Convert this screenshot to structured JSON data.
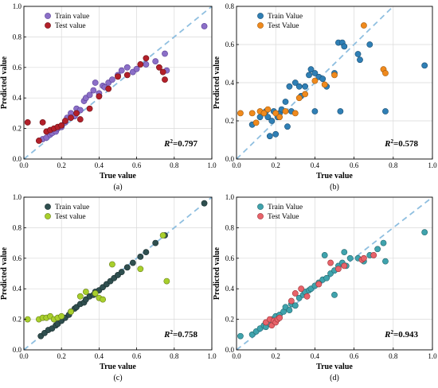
{
  "chart_data": [
    {
      "type": "scatter",
      "caption": "(a)",
      "xlabel": "True value",
      "ylabel": "Predicted value",
      "xlim": [
        0,
        1.0
      ],
      "ylim": [
        0,
        1.0
      ],
      "ticks": [
        "0.0",
        "0.2",
        "0.4",
        "0.6",
        "0.8",
        "1.0"
      ],
      "r2_prefix": "R",
      "r2_sup": "2",
      "r2_value": "=0.797",
      "legend_position": "top-left",
      "grid": true,
      "diagonal": true,
      "series": [
        {
          "name": "Train value",
          "color": "#8b6fc7",
          "edge": "#5a3f96",
          "points": [
            [
              0.1,
              0.13
            ],
            [
              0.12,
              0.14
            ],
            [
              0.14,
              0.16
            ],
            [
              0.15,
              0.17
            ],
            [
              0.17,
              0.18
            ],
            [
              0.18,
              0.2
            ],
            [
              0.2,
              0.21
            ],
            [
              0.22,
              0.24
            ],
            [
              0.23,
              0.27
            ],
            [
              0.25,
              0.3
            ],
            [
              0.27,
              0.28
            ],
            [
              0.28,
              0.33
            ],
            [
              0.3,
              0.32
            ],
            [
              0.32,
              0.38
            ],
            [
              0.33,
              0.4
            ],
            [
              0.35,
              0.42
            ],
            [
              0.37,
              0.45
            ],
            [
              0.38,
              0.5
            ],
            [
              0.4,
              0.43
            ],
            [
              0.42,
              0.48
            ],
            [
              0.43,
              0.47
            ],
            [
              0.45,
              0.5
            ],
            [
              0.47,
              0.52
            ],
            [
              0.5,
              0.55
            ],
            [
              0.52,
              0.58
            ],
            [
              0.55,
              0.6
            ],
            [
              0.58,
              0.57
            ],
            [
              0.6,
              0.59
            ],
            [
              0.65,
              0.62
            ],
            [
              0.7,
              0.64
            ],
            [
              0.75,
              0.69
            ],
            [
              0.76,
              0.58
            ],
            [
              0.96,
              0.87
            ]
          ]
        },
        {
          "name": "Test value",
          "color": "#b3202a",
          "edge": "#6e0f15",
          "points": [
            [
              0.02,
              0.24
            ],
            [
              0.08,
              0.12
            ],
            [
              0.1,
              0.24
            ],
            [
              0.12,
              0.18
            ],
            [
              0.14,
              0.19
            ],
            [
              0.16,
              0.2
            ],
            [
              0.18,
              0.21
            ],
            [
              0.2,
              0.22
            ],
            [
              0.22,
              0.25
            ],
            [
              0.25,
              0.27
            ],
            [
              0.28,
              0.3
            ],
            [
              0.3,
              0.26
            ],
            [
              0.35,
              0.33
            ],
            [
              0.4,
              0.41
            ],
            [
              0.45,
              0.46
            ],
            [
              0.5,
              0.54
            ],
            [
              0.55,
              0.55
            ],
            [
              0.62,
              0.62
            ],
            [
              0.65,
              0.66
            ],
            [
              0.72,
              0.6
            ],
            [
              0.75,
              0.52
            ],
            [
              0.74,
              0.57
            ]
          ]
        }
      ]
    },
    {
      "type": "scatter",
      "caption": "(b)",
      "xlabel": "True value",
      "ylabel": "Predicted value",
      "xlim": [
        0,
        1.0
      ],
      "ylim": [
        0,
        0.8
      ],
      "ticks": [
        "0.0",
        "0.2",
        "0.4",
        "0.6",
        "0.8",
        "1.0"
      ],
      "yticks": [
        "0.0",
        "0.2",
        "0.4",
        "0.6",
        "0.8"
      ],
      "r2_prefix": "R",
      "r2_sup": "2",
      "r2_value": "=0.578",
      "legend_position": "top-left",
      "grid": true,
      "diagonal": true,
      "series": [
        {
          "name": "Train Value",
          "color": "#2f7fb5",
          "edge": "#1b4f73",
          "points": [
            [
              0.08,
              0.18
            ],
            [
              0.12,
              0.22
            ],
            [
              0.14,
              0.24
            ],
            [
              0.15,
              0.25
            ],
            [
              0.16,
              0.22
            ],
            [
              0.17,
              0.12
            ],
            [
              0.18,
              0.2
            ],
            [
              0.19,
              0.25
            ],
            [
              0.2,
              0.13
            ],
            [
              0.21,
              0.22
            ],
            [
              0.22,
              0.24
            ],
            [
              0.23,
              0.26
            ],
            [
              0.25,
              0.3
            ],
            [
              0.27,
              0.38
            ],
            [
              0.28,
              0.25
            ],
            [
              0.3,
              0.4
            ],
            [
              0.32,
              0.38
            ],
            [
              0.33,
              0.33
            ],
            [
              0.35,
              0.38
            ],
            [
              0.37,
              0.44
            ],
            [
              0.38,
              0.47
            ],
            [
              0.4,
              0.45
            ],
            [
              0.42,
              0.43
            ],
            [
              0.44,
              0.42
            ],
            [
              0.46,
              0.38
            ],
            [
              0.5,
              0.45
            ],
            [
              0.52,
              0.61
            ],
            [
              0.54,
              0.61
            ],
            [
              0.55,
              0.59
            ],
            [
              0.62,
              0.55
            ],
            [
              0.63,
              0.52
            ],
            [
              0.68,
              0.6
            ],
            [
              0.76,
              0.25
            ],
            [
              0.96,
              0.49
            ],
            [
              0.53,
              0.25
            ],
            [
              0.4,
              0.25
            ],
            [
              0.26,
              0.17
            ]
          ]
        },
        {
          "name": "Test Value",
          "color": "#f08a1d",
          "edge": "#a15a0d",
          "points": [
            [
              0.02,
              0.24
            ],
            [
              0.08,
              0.24
            ],
            [
              0.1,
              0.19
            ],
            [
              0.12,
              0.25
            ],
            [
              0.14,
              0.24
            ],
            [
              0.16,
              0.26
            ],
            [
              0.2,
              0.24
            ],
            [
              0.22,
              0.22
            ],
            [
              0.25,
              0.25
            ],
            [
              0.3,
              0.24
            ],
            [
              0.32,
              0.32
            ],
            [
              0.35,
              0.34
            ],
            [
              0.4,
              0.41
            ],
            [
              0.45,
              0.39
            ],
            [
              0.5,
              0.44
            ],
            [
              0.65,
              0.7
            ],
            [
              0.75,
              0.47
            ],
            [
              0.76,
              0.45
            ]
          ]
        }
      ]
    },
    {
      "type": "scatter",
      "caption": "(c)",
      "xlabel": "True value",
      "ylabel": "Predicted value",
      "xlim": [
        0,
        1.0
      ],
      "ylim": [
        0,
        1.0
      ],
      "ticks": [
        "0.0",
        "0.2",
        "0.4",
        "0.6",
        "0.8",
        "1.0"
      ],
      "r2_prefix": "R",
      "r2_sup": "2",
      "r2_value": "=0.758",
      "legend_position": "top-left",
      "grid": true,
      "diagonal": true,
      "series": [
        {
          "name": "Train value",
          "color": "#2f4f4f",
          "edge": "#1a2e2e",
          "points": [
            [
              0.09,
              0.09
            ],
            [
              0.11,
              0.11
            ],
            [
              0.13,
              0.13
            ],
            [
              0.15,
              0.14
            ],
            [
              0.17,
              0.16
            ],
            [
              0.18,
              0.17
            ],
            [
              0.2,
              0.19
            ],
            [
              0.22,
              0.21
            ],
            [
              0.24,
              0.23
            ],
            [
              0.25,
              0.25
            ],
            [
              0.27,
              0.27
            ],
            [
              0.28,
              0.28
            ],
            [
              0.3,
              0.3
            ],
            [
              0.32,
              0.31
            ],
            [
              0.33,
              0.33
            ],
            [
              0.35,
              0.35
            ],
            [
              0.37,
              0.36
            ],
            [
              0.38,
              0.38
            ],
            [
              0.4,
              0.39
            ],
            [
              0.42,
              0.41
            ],
            [
              0.44,
              0.43
            ],
            [
              0.46,
              0.45
            ],
            [
              0.48,
              0.47
            ],
            [
              0.5,
              0.49
            ],
            [
              0.52,
              0.51
            ],
            [
              0.55,
              0.54
            ],
            [
              0.58,
              0.57
            ],
            [
              0.62,
              0.61
            ],
            [
              0.65,
              0.64
            ],
            [
              0.7,
              0.7
            ],
            [
              0.75,
              0.75
            ],
            [
              0.96,
              0.96
            ]
          ]
        },
        {
          "name": "Test value",
          "color": "#a8cf2c",
          "edge": "#657d18",
          "points": [
            [
              0.02,
              0.2
            ],
            [
              0.08,
              0.2
            ],
            [
              0.1,
              0.21
            ],
            [
              0.12,
              0.21
            ],
            [
              0.14,
              0.22
            ],
            [
              0.16,
              0.2
            ],
            [
              0.18,
              0.21
            ],
            [
              0.2,
              0.22
            ],
            [
              0.25,
              0.25
            ],
            [
              0.3,
              0.35
            ],
            [
              0.33,
              0.38
            ],
            [
              0.38,
              0.37
            ],
            [
              0.4,
              0.34
            ],
            [
              0.42,
              0.33
            ],
            [
              0.47,
              0.56
            ],
            [
              0.62,
              0.53
            ],
            [
              0.74,
              0.75
            ],
            [
              0.76,
              0.45
            ]
          ]
        }
      ]
    },
    {
      "type": "scatter",
      "caption": "(d)",
      "xlabel": "True value",
      "ylabel": "Predicted value",
      "xlim": [
        0,
        1.0
      ],
      "ylim": [
        0,
        1.0
      ],
      "ticks": [
        "0.0",
        "0.2",
        "0.4",
        "0.6",
        "0.8",
        "1.0"
      ],
      "r2_prefix": "R",
      "r2_sup": "2",
      "r2_value": "=0.943",
      "legend_position": "top-left",
      "grid": true,
      "diagonal": true,
      "series": [
        {
          "name": "Train Value",
          "color": "#3fa3ad",
          "edge": "#23656b",
          "points": [
            [
              0.02,
              0.09
            ],
            [
              0.08,
              0.1
            ],
            [
              0.1,
              0.12
            ],
            [
              0.12,
              0.14
            ],
            [
              0.14,
              0.16
            ],
            [
              0.15,
              0.15
            ],
            [
              0.17,
              0.17
            ],
            [
              0.18,
              0.2
            ],
            [
              0.2,
              0.22
            ],
            [
              0.22,
              0.23
            ],
            [
              0.24,
              0.25
            ],
            [
              0.25,
              0.28
            ],
            [
              0.27,
              0.26
            ],
            [
              0.28,
              0.3
            ],
            [
              0.3,
              0.29
            ],
            [
              0.32,
              0.34
            ],
            [
              0.34,
              0.36
            ],
            [
              0.35,
              0.38
            ],
            [
              0.37,
              0.39
            ],
            [
              0.38,
              0.4
            ],
            [
              0.4,
              0.42
            ],
            [
              0.42,
              0.44
            ],
            [
              0.44,
              0.46
            ],
            [
              0.46,
              0.47
            ],
            [
              0.48,
              0.5
            ],
            [
              0.5,
              0.52
            ],
            [
              0.52,
              0.55
            ],
            [
              0.54,
              0.57
            ],
            [
              0.56,
              0.55
            ],
            [
              0.58,
              0.6
            ],
            [
              0.62,
              0.6
            ],
            [
              0.65,
              0.58
            ],
            [
              0.68,
              0.62
            ],
            [
              0.72,
              0.66
            ],
            [
              0.75,
              0.7
            ],
            [
              0.76,
              0.58
            ],
            [
              0.96,
              0.77
            ],
            [
              0.45,
              0.62
            ],
            [
              0.55,
              0.64
            ],
            [
              0.5,
              0.36
            ]
          ]
        },
        {
          "name": "Test Value",
          "color": "#e8636a",
          "edge": "#9b3338",
          "points": [
            [
              0.15,
              0.18
            ],
            [
              0.17,
              0.2
            ],
            [
              0.18,
              0.16
            ],
            [
              0.19,
              0.19
            ],
            [
              0.2,
              0.18
            ],
            [
              0.21,
              0.2
            ],
            [
              0.22,
              0.21
            ],
            [
              0.28,
              0.32
            ],
            [
              0.3,
              0.37
            ],
            [
              0.33,
              0.4
            ],
            [
              0.36,
              0.35
            ],
            [
              0.42,
              0.43
            ],
            [
              0.48,
              0.57
            ],
            [
              0.52,
              0.53
            ],
            [
              0.55,
              0.55
            ],
            [
              0.64,
              0.59
            ],
            [
              0.65,
              0.6
            ],
            [
              0.7,
              0.62
            ]
          ]
        }
      ]
    }
  ]
}
